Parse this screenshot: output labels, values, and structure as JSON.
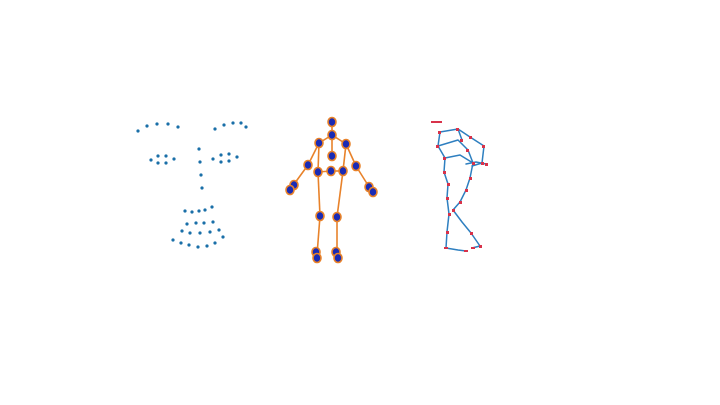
{
  "colors": {
    "background": "#ffffff",
    "face_point": "#1a6fa8",
    "body_bone": "#e8822a",
    "body_joint_fill": "#1a2bb5",
    "body_joint_stroke": "#e8822a",
    "skeleton_bone": "#2e7fc0",
    "skeleton_joint": "#d8324a"
  },
  "figures": [
    {
      "id": "face-landmarks",
      "description_icon": "face-landmark-dots-icon"
    },
    {
      "id": "body-keypoints",
      "description_icon": "body-pose-keypoints-icon"
    },
    {
      "id": "hand-skeleton",
      "description_icon": "skeleton-stick-figure-icon"
    }
  ]
}
